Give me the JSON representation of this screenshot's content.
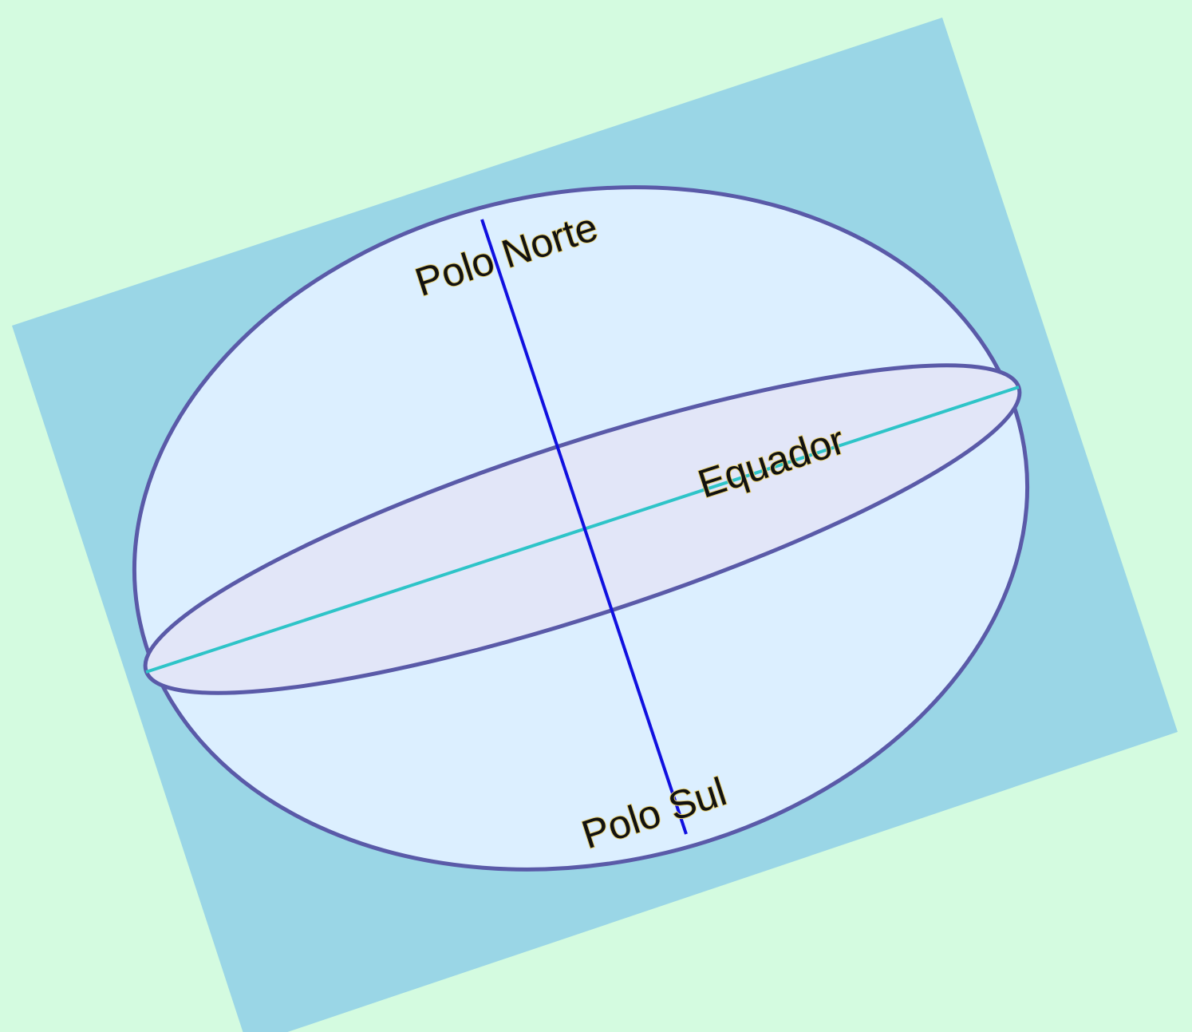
{
  "labels": {
    "north": "Polo Norte",
    "south": "Polo Sul",
    "equator": "Equador"
  }
}
